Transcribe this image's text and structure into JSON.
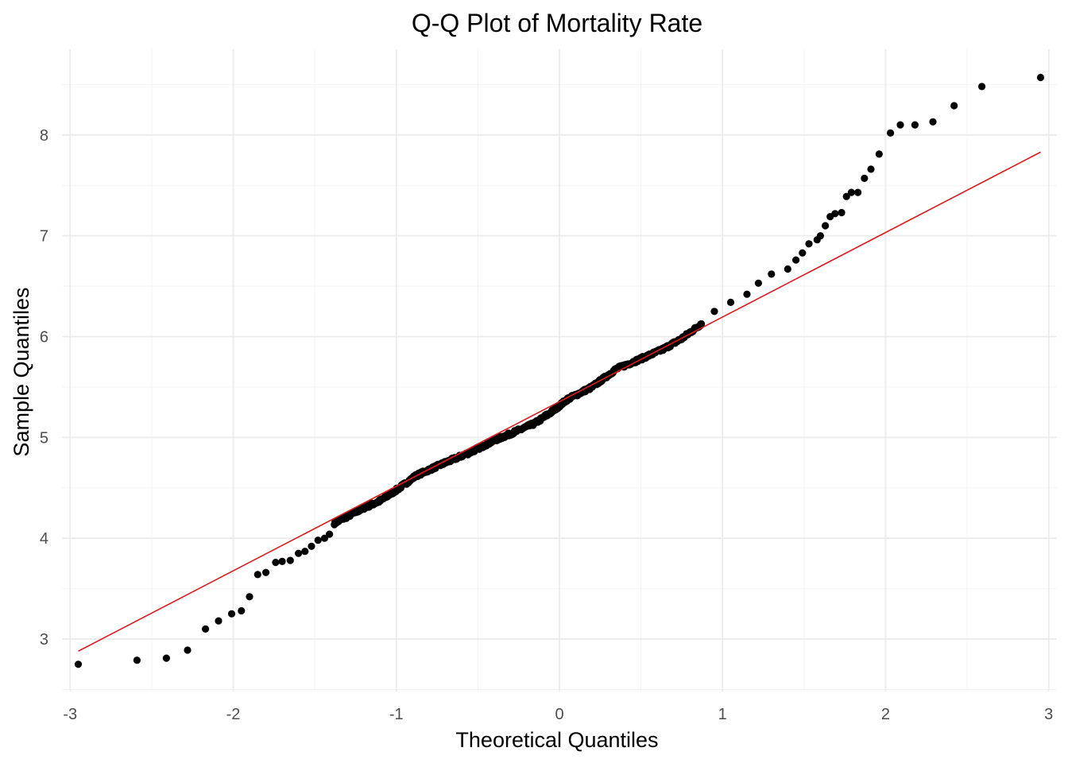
{
  "chart_data": {
    "type": "scatter",
    "title": "Q-Q Plot of Mortality Rate",
    "xlabel": "Theoretical Quantiles",
    "ylabel": "Sample Quantiles",
    "xlim": [
      -3.05,
      3.05
    ],
    "ylim": [
      2.48,
      8.85
    ],
    "grid": true,
    "x_ticks": [
      {
        "value": -3,
        "label": "-3"
      },
      {
        "value": -2,
        "label": "-2"
      },
      {
        "value": -1,
        "label": "-1"
      },
      {
        "value": 0,
        "label": "0"
      },
      {
        "value": 1,
        "label": "1"
      },
      {
        "value": 2,
        "label": "2"
      },
      {
        "value": 3,
        "label": "3"
      }
    ],
    "y_ticks": [
      {
        "value": 3,
        "label": "3"
      },
      {
        "value": 4,
        "label": "4"
      },
      {
        "value": 5,
        "label": "5"
      },
      {
        "value": 6,
        "label": "6"
      },
      {
        "value": 7,
        "label": "7"
      },
      {
        "value": 8,
        "label": "8"
      }
    ],
    "reference_line": {
      "x": [
        -2.95,
        2.95
      ],
      "y": [
        2.88,
        7.83
      ],
      "color": "#e31a1c"
    },
    "point_color": "#000000",
    "anchor_points": [
      [
        -2.95,
        2.75
      ],
      [
        -2.59,
        2.79
      ],
      [
        -2.41,
        2.81
      ],
      [
        -2.28,
        2.89
      ],
      [
        -2.17,
        3.1
      ],
      [
        -2.09,
        3.18
      ],
      [
        -2.01,
        3.25
      ],
      [
        -1.95,
        3.28
      ],
      [
        -1.9,
        3.42
      ],
      [
        -1.85,
        3.64
      ],
      [
        -1.8,
        3.66
      ],
      [
        -1.74,
        3.76
      ],
      [
        -1.7,
        3.77
      ],
      [
        -1.65,
        3.78
      ],
      [
        -1.6,
        3.85
      ],
      [
        -1.56,
        3.87
      ],
      [
        -1.52,
        3.92
      ],
      [
        -1.48,
        3.98
      ],
      [
        -1.44,
        4.0
      ],
      [
        -1.41,
        4.04
      ],
      [
        -1.38,
        4.15
      ],
      [
        -1.32,
        4.2
      ],
      [
        -1.2,
        4.3
      ],
      [
        -1.1,
        4.37
      ],
      [
        -0.98,
        4.5
      ],
      [
        -0.88,
        4.62
      ],
      [
        -0.7,
        4.75
      ],
      [
        -0.55,
        4.85
      ],
      [
        -0.4,
        4.97
      ],
      [
        -0.28,
        5.05
      ],
      [
        -0.15,
        5.14
      ],
      [
        -0.05,
        5.25
      ],
      [
        0.05,
        5.38
      ],
      [
        0.2,
        5.5
      ],
      [
        0.35,
        5.68
      ],
      [
        0.5,
        5.78
      ],
      [
        0.63,
        5.87
      ],
      [
        0.75,
        5.98
      ],
      [
        0.85,
        6.1
      ],
      [
        0.95,
        6.25
      ],
      [
        1.05,
        6.34
      ],
      [
        1.15,
        6.42
      ],
      [
        1.22,
        6.53
      ],
      [
        1.3,
        6.62
      ],
      [
        1.4,
        6.67
      ],
      [
        1.45,
        6.76
      ],
      [
        1.49,
        6.83
      ],
      [
        1.53,
        6.92
      ],
      [
        1.58,
        6.96
      ],
      [
        1.6,
        7.0
      ],
      [
        1.63,
        7.1
      ],
      [
        1.66,
        7.19
      ],
      [
        1.69,
        7.22
      ],
      [
        1.73,
        7.23
      ],
      [
        1.76,
        7.39
      ],
      [
        1.79,
        7.43
      ],
      [
        1.83,
        7.43
      ],
      [
        1.87,
        7.57
      ],
      [
        1.91,
        7.66
      ],
      [
        1.96,
        7.81
      ],
      [
        2.03,
        8.02
      ],
      [
        2.09,
        8.1
      ],
      [
        2.18,
        8.1
      ],
      [
        2.29,
        8.13
      ],
      [
        2.42,
        8.29
      ],
      [
        2.59,
        8.48
      ],
      [
        2.95,
        8.57
      ]
    ],
    "dense_range": [
      -1.38,
      0.87
    ],
    "dense_count": 520
  }
}
